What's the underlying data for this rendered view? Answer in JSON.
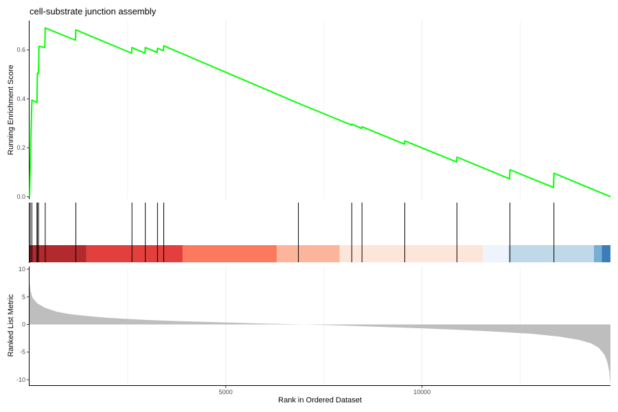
{
  "chart_data": {
    "type": "line",
    "title": "cell-substrate junction assembly",
    "xlabel": "Rank in Ordered Dataset",
    "xlim": [
      0,
      14800
    ],
    "x_ticks": [
      5000,
      10000
    ],
    "grid": "vertical only",
    "panels": {
      "enrichment": {
        "ylabel": "Running Enrichment Score",
        "ylim": [
          -0.01,
          0.72
        ],
        "y_ticks": [
          0.0,
          0.2,
          0.4,
          0.6
        ],
        "line_color": "#00ff00",
        "points": [
          [
            0,
            0.0
          ],
          [
            30,
            0.21
          ],
          [
            60,
            0.395
          ],
          [
            190,
            0.385
          ],
          [
            200,
            0.505
          ],
          [
            230,
            0.505
          ],
          [
            240,
            0.615
          ],
          [
            390,
            0.61
          ],
          [
            400,
            0.69
          ],
          [
            1170,
            0.64
          ],
          [
            1180,
            0.682
          ],
          [
            2600,
            0.587
          ],
          [
            2610,
            0.61
          ],
          [
            2940,
            0.587
          ],
          [
            2950,
            0.61
          ],
          [
            3250,
            0.59
          ],
          [
            3260,
            0.607
          ],
          [
            3410,
            0.597
          ],
          [
            3420,
            0.617
          ],
          [
            6850,
            0.382
          ],
          [
            8200,
            0.293
          ],
          [
            8210,
            0.297
          ],
          [
            8460,
            0.279
          ],
          [
            8470,
            0.286
          ],
          [
            9550,
            0.215
          ],
          [
            9560,
            0.228
          ],
          [
            10880,
            0.142
          ],
          [
            10890,
            0.162
          ],
          [
            12230,
            0.073
          ],
          [
            12240,
            0.11
          ],
          [
            13350,
            0.038
          ],
          [
            13360,
            0.096
          ],
          [
            14800,
            0.0
          ]
        ]
      },
      "hits": {
        "positions": [
          20,
          60,
          190,
          200,
          230,
          400,
          1180,
          2610,
          2950,
          3260,
          3420,
          6850,
          8210,
          8470,
          9560,
          10890,
          12240,
          13360
        ],
        "color_bands": [
          {
            "end": 1450,
            "color": "#b2292e"
          },
          {
            "end": 3900,
            "color": "#e33f3c"
          },
          {
            "end": 6300,
            "color": "#fb7a5e"
          },
          {
            "end": 7900,
            "color": "#fcb59b"
          },
          {
            "end": 11550,
            "color": "#fee5d9"
          },
          {
            "end": 12200,
            "color": "#eff3fb"
          },
          {
            "end": 14380,
            "color": "#c0d9e8"
          },
          {
            "end": 14580,
            "color": "#77aed4"
          },
          {
            "end": 14800,
            "color": "#3a7db8"
          }
        ]
      },
      "ranked_metric": {
        "ylabel": "Ranked List Metric",
        "ylim": [
          -11,
          10.5
        ],
        "y_ticks": [
          10,
          5,
          0,
          -5,
          -10
        ],
        "fill_color": "#bebebe",
        "zero_cross": 7000,
        "curve": [
          [
            0,
            7.5
          ],
          [
            30,
            6.0
          ],
          [
            80,
            4.8
          ],
          [
            200,
            3.8
          ],
          [
            400,
            3.0
          ],
          [
            700,
            2.3
          ],
          [
            1000,
            1.9
          ],
          [
            1500,
            1.5
          ],
          [
            2000,
            1.2
          ],
          [
            3000,
            0.8
          ],
          [
            4000,
            0.55
          ],
          [
            5000,
            0.35
          ],
          [
            6000,
            0.15
          ],
          [
            7000,
            0.0
          ],
          [
            8000,
            -0.2
          ],
          [
            9000,
            -0.45
          ],
          [
            10000,
            -0.7
          ],
          [
            11000,
            -1.0
          ],
          [
            12000,
            -1.35
          ],
          [
            12800,
            -1.7
          ],
          [
            13500,
            -2.2
          ],
          [
            14000,
            -2.8
          ],
          [
            14300,
            -3.4
          ],
          [
            14500,
            -4.2
          ],
          [
            14650,
            -5.5
          ],
          [
            14720,
            -6.8
          ],
          [
            14770,
            -8.5
          ],
          [
            14790,
            -10.3
          ],
          [
            14800,
            -10.8
          ]
        ]
      }
    }
  }
}
